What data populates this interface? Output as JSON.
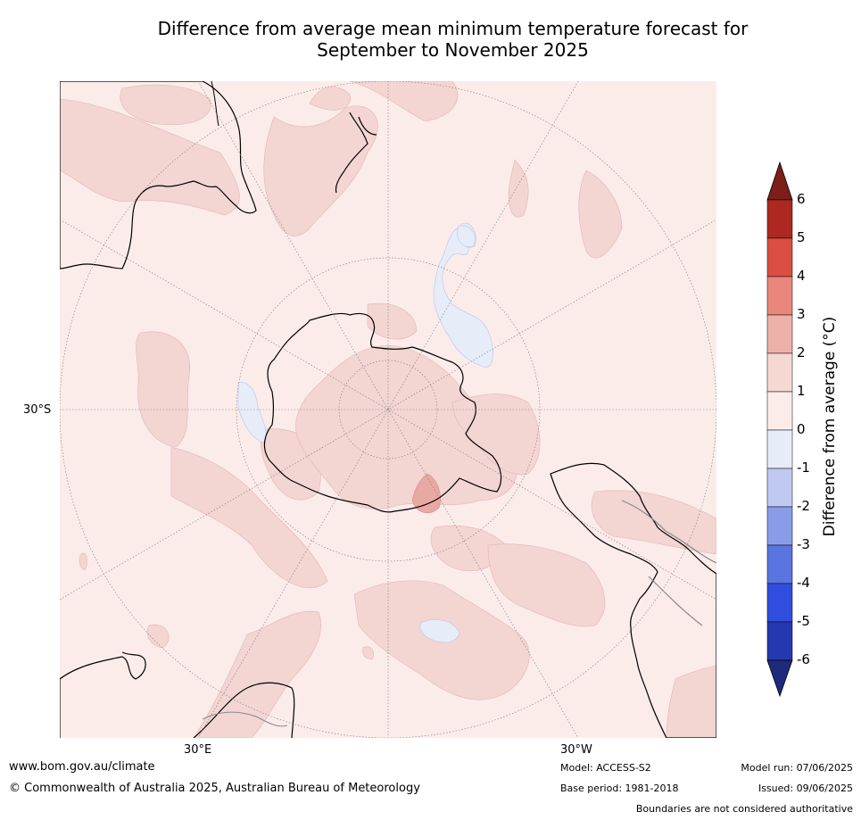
{
  "title_line1": "Difference from average mean minimum temperature forecast for",
  "title_line2": "September to November 2025",
  "map": {
    "projection": "south polar stereographic",
    "labels": {
      "lat": "30°S",
      "lon_east": "30°E",
      "lon_west": "30°W"
    },
    "colors": {
      "ocean_base": "#fbecea",
      "anom_1_2": "#f3d5d2",
      "anom_2_3": "#e8a9a4",
      "anom_neg_0_1": "#e7ecf9",
      "coastline": "#000000",
      "borders": "#888888",
      "gridlines": "#7a7a7a"
    }
  },
  "colorbar": {
    "title": "Difference from average (°C)",
    "ticks": [
      "6",
      "5",
      "4",
      "3",
      "2",
      "1",
      "0",
      "-1",
      "-2",
      "-3",
      "-4",
      "-5",
      "-6"
    ],
    "bins_top_to_bottom": [
      "#ac2821",
      "#dc4e42",
      "#e9877d",
      "#eeb1a9",
      "#f6d8d3",
      "#fbecea",
      "#e7ecf9",
      "#c0c9f1",
      "#8a9ce9",
      "#5a74e0",
      "#2f4ee0",
      "#2538b0"
    ],
    "over_color": "#7b1f18",
    "under_color": "#1f2a7c"
  },
  "footer": {
    "url": "www.bom.gov.au/climate",
    "copyright": "© Commonwealth of Australia 2025, Australian Bureau of Meteorology",
    "model": "Model: ACCESS-S2",
    "base_period": "Base period: 1981-2018",
    "model_run": "Model run: 07/06/2025",
    "issued": "Issued: 09/06/2025",
    "disclaimer": "Boundaries are not considered authoritative"
  }
}
